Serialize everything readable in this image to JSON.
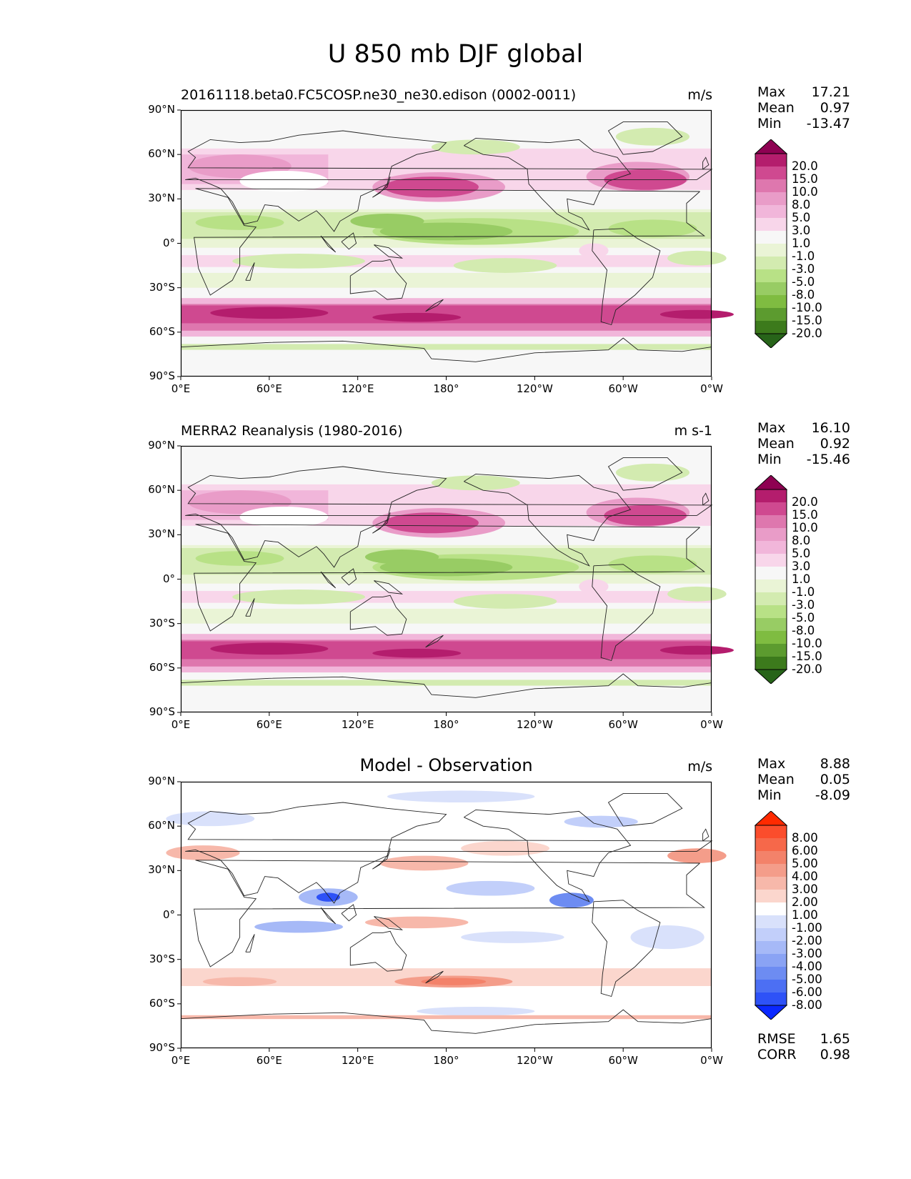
{
  "figure_title": "U 850 mb DJF global",
  "x_ticks": [
    "0°E",
    "60°E",
    "120°E",
    "180°",
    "120°W",
    "60°W",
    "0°W"
  ],
  "y_ticks": [
    "90°N",
    "60°N",
    "30°N",
    "0°",
    "30°S",
    "60°S",
    "90°S"
  ],
  "panels": [
    {
      "title": "20161118.beta0.FC5COSP.ne30_ne30.edison (0002-0011)",
      "title_style": "left",
      "units": "m/s",
      "stats": [
        {
          "label": "Max",
          "value": "17.21"
        },
        {
          "label": "Mean",
          "value": "0.97"
        },
        {
          "label": "Min",
          "value": "-13.47"
        }
      ],
      "colorbar": {
        "levels": [
          "20.0",
          "15.0",
          "10.0",
          "8.0",
          "5.0",
          "3.0",
          "1.0",
          "-1.0",
          "-3.0",
          "-5.0",
          "-8.0",
          "-10.0",
          "-15.0",
          "-20.0"
        ],
        "colors": [
          "#8e0152",
          "#b41d6d",
          "#cf4990",
          "#de77ae",
          "#e99cc8",
          "#f1b6da",
          "#f8d6ea",
          "#f7f7f7",
          "#eaf4d6",
          "#d3ebb0",
          "#b8e186",
          "#98cc64",
          "#7fbc41",
          "#5c9b2f",
          "#3c7a1c",
          "#276419"
        ]
      },
      "map_fill": "jet_model"
    },
    {
      "title": "MERRA2 Reanalysis (1980-2016)",
      "title_style": "left",
      "units": "m s-1",
      "stats": [
        {
          "label": "Max",
          "value": "16.10"
        },
        {
          "label": "Mean",
          "value": "0.92"
        },
        {
          "label": "Min",
          "value": "-15.46"
        }
      ],
      "colorbar": {
        "levels": [
          "20.0",
          "15.0",
          "10.0",
          "8.0",
          "5.0",
          "3.0",
          "1.0",
          "-1.0",
          "-3.0",
          "-5.0",
          "-8.0",
          "-10.0",
          "-15.0",
          "-20.0"
        ],
        "colors": [
          "#8e0152",
          "#b41d6d",
          "#cf4990",
          "#de77ae",
          "#e99cc8",
          "#f1b6da",
          "#f8d6ea",
          "#f7f7f7",
          "#eaf4d6",
          "#d3ebb0",
          "#b8e186",
          "#98cc64",
          "#7fbc41",
          "#5c9b2f",
          "#3c7a1c",
          "#276419"
        ]
      },
      "map_fill": "jet_obs"
    },
    {
      "title": "Model - Observation",
      "title_style": "center",
      "units": "m/s",
      "stats": [
        {
          "label": "Max",
          "value": "8.88"
        },
        {
          "label": "Mean",
          "value": "0.05"
        },
        {
          "label": "Min",
          "value": "-8.09"
        }
      ],
      "colorbar": {
        "levels": [
          "8.00",
          "6.00",
          "5.00",
          "4.00",
          "3.00",
          "2.00",
          "1.00",
          "-1.00",
          "-2.00",
          "-3.00",
          "-4.00",
          "-5.00",
          "-6.00",
          "-8.00"
        ],
        "colors": [
          "#ff2a00",
          "#fb4d2c",
          "#f6684a",
          "#f3826a",
          "#f49d8a",
          "#f7b8aa",
          "#fbd6cd",
          "#ffffff",
          "#d9e1fb",
          "#c2cffa",
          "#a6b9f7",
          "#8aa3f4",
          "#6d8cf2",
          "#4c6ff3",
          "#2e52f7",
          "#0a28ff"
        ]
      },
      "extra_stats": [
        {
          "label": "RMSE",
          "value": "1.65"
        },
        {
          "label": "CORR",
          "value": "0.98"
        }
      ],
      "map_fill": "diff"
    }
  ]
}
